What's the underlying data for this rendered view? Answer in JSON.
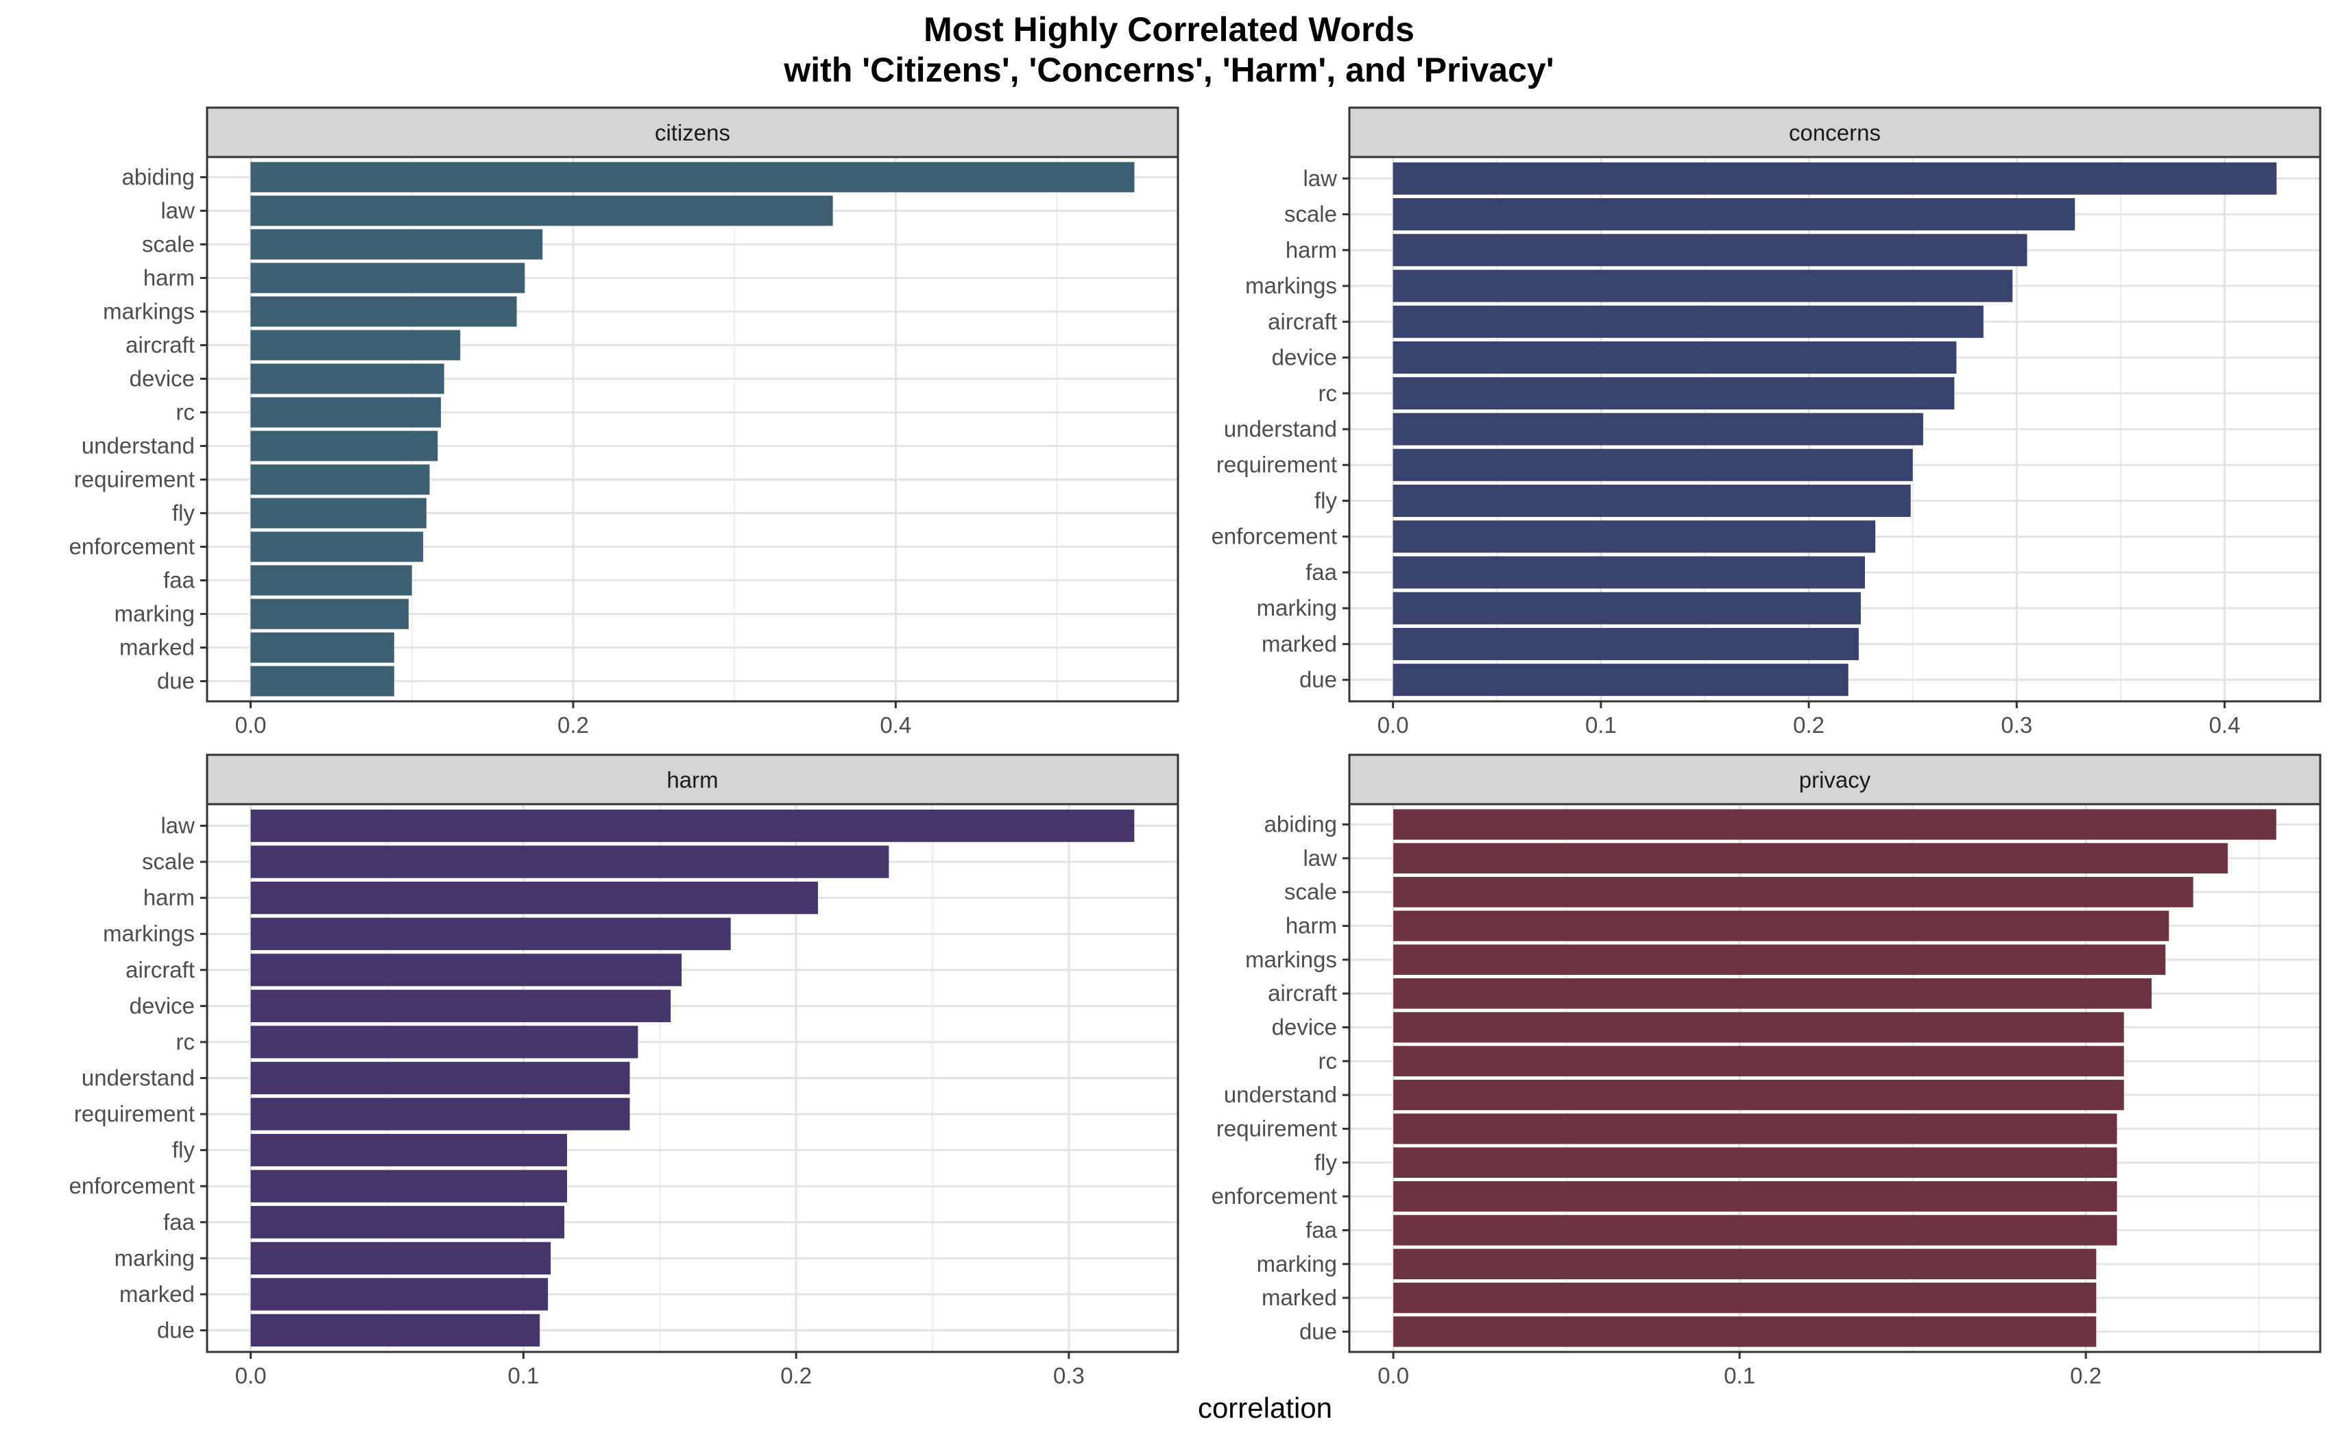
{
  "title": {
    "line1": "Most Highly Correlated Words",
    "line2": "with 'Citizens', 'Concerns', 'Harm', and 'Privacy'"
  },
  "xlabel": "correlation",
  "chart_data": [
    {
      "type": "bar",
      "orientation": "horizontal",
      "facet": "citizens",
      "color": "#3d5f73",
      "categories": [
        "abiding",
        "law",
        "scale",
        "harm",
        "markings",
        "aircraft",
        "device",
        "rc",
        "understand",
        "requirement",
        "fly",
        "enforcement",
        "faa",
        "marking",
        "marked",
        "due"
      ],
      "values": [
        0.548,
        0.361,
        0.181,
        0.17,
        0.165,
        0.13,
        0.12,
        0.118,
        0.116,
        0.111,
        0.109,
        0.107,
        0.1,
        0.098,
        0.089,
        0.089
      ],
      "xlim": [
        -0.027,
        0.575
      ],
      "ticks": [
        0.0,
        0.2,
        0.4
      ],
      "tick_labels": [
        "0.0",
        "0.2",
        "0.4"
      ],
      "grid": true
    },
    {
      "type": "bar",
      "orientation": "horizontal",
      "facet": "concerns",
      "color": "#39416d",
      "categories": [
        "law",
        "scale",
        "harm",
        "markings",
        "aircraft",
        "device",
        "rc",
        "understand",
        "requirement",
        "fly",
        "enforcement",
        "faa",
        "marking",
        "marked",
        "due"
      ],
      "values": [
        0.425,
        0.328,
        0.305,
        0.298,
        0.284,
        0.271,
        0.27,
        0.255,
        0.25,
        0.249,
        0.232,
        0.227,
        0.225,
        0.224,
        0.219
      ],
      "xlim": [
        -0.021,
        0.446
      ],
      "ticks": [
        0.0,
        0.1,
        0.2,
        0.3,
        0.4
      ],
      "tick_labels": [
        "0.0",
        "0.1",
        "0.2",
        "0.3",
        "0.4"
      ],
      "grid": true
    },
    {
      "type": "bar",
      "orientation": "horizontal",
      "facet": "harm",
      "color": "#46356b",
      "categories": [
        "law",
        "scale",
        "harm",
        "markings",
        "aircraft",
        "device",
        "rc",
        "understand",
        "requirement",
        "fly",
        "enforcement",
        "faa",
        "marking",
        "marked",
        "due"
      ],
      "values": [
        0.324,
        0.234,
        0.208,
        0.176,
        0.158,
        0.154,
        0.142,
        0.139,
        0.139,
        0.116,
        0.116,
        0.115,
        0.11,
        0.109,
        0.106
      ],
      "xlim": [
        -0.016,
        0.34
      ],
      "ticks": [
        0.0,
        0.1,
        0.2,
        0.3
      ],
      "tick_labels": [
        "0.0",
        "0.1",
        "0.2",
        "0.3"
      ],
      "grid": true
    },
    {
      "type": "bar",
      "orientation": "horizontal",
      "facet": "privacy",
      "color": "#6e3342",
      "categories": [
        "abiding",
        "law",
        "scale",
        "harm",
        "markings",
        "aircraft",
        "device",
        "rc",
        "understand",
        "requirement",
        "fly",
        "enforcement",
        "faa",
        "marking",
        "marked",
        "due"
      ],
      "values": [
        0.255,
        0.241,
        0.231,
        0.224,
        0.223,
        0.219,
        0.211,
        0.211,
        0.211,
        0.209,
        0.209,
        0.209,
        0.209,
        0.203,
        0.203,
        0.203
      ],
      "xlim": [
        -0.0127,
        0.2677
      ],
      "ticks": [
        0.0,
        0.1,
        0.2
      ],
      "tick_labels": [
        "0.0",
        "0.1",
        "0.2"
      ],
      "grid": true
    }
  ]
}
